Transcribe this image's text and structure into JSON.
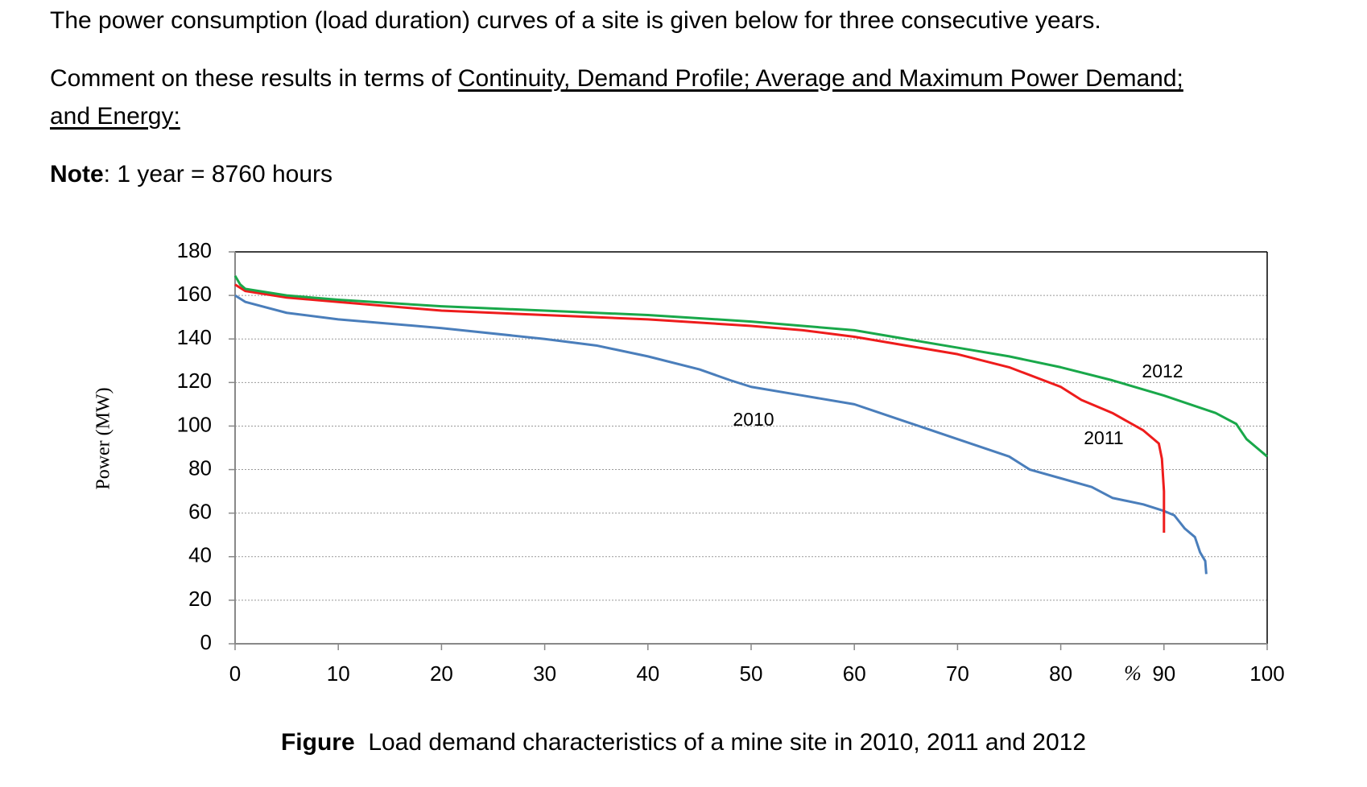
{
  "text": {
    "intro": "The power consumption (load duration) curves of a site is given below for three consecutive years.",
    "comment_prefix": "Comment on these results in terms of ",
    "comment_underlined_1": "Continuity, Demand Profile; Average and Maximum Power Demand;",
    "comment_underlined_2": "and Energy:",
    "note_label": "Note",
    "note_text": ": 1 year = 8760 hours",
    "figure_label": "Figure",
    "figure_caption": "Load demand characteristics of a mine site in 2010, 2011 and 2012"
  },
  "chart_data": {
    "type": "line",
    "y_label": "Power (MW)",
    "x_label": "%",
    "xlim": [
      0,
      100
    ],
    "xticks": [
      0,
      10,
      20,
      30,
      40,
      50,
      60,
      70,
      80,
      90,
      100
    ],
    "ylim": [
      0,
      180
    ],
    "yticks": [
      0,
      20,
      40,
      60,
      80,
      100,
      120,
      140,
      160,
      180
    ],
    "grid": true,
    "series": [
      {
        "name": "2010",
        "color": "#4a7ebb",
        "x": [
          0,
          1,
          5,
          10,
          20,
          30,
          35,
          40,
          45,
          48,
          50,
          55,
          60,
          65,
          70,
          75,
          77,
          80,
          83,
          85,
          88,
          90,
          91,
          92,
          93,
          93.5,
          94,
          94.1
        ],
        "values": [
          160,
          157,
          152,
          149,
          145,
          140,
          137,
          132,
          126,
          121,
          118,
          114,
          110,
          102,
          94,
          86,
          80,
          76,
          72,
          67,
          64,
          61,
          59,
          53,
          49,
          42,
          38,
          32
        ]
      },
      {
        "name": "2011",
        "color": "#ee1c1c",
        "x": [
          0,
          1,
          5,
          10,
          20,
          30,
          40,
          50,
          55,
          60,
          65,
          70,
          75,
          80,
          82,
          85,
          88,
          89.5,
          89.8,
          90,
          90
        ],
        "values": [
          165,
          162,
          159,
          157,
          153,
          151,
          149,
          146,
          144,
          141,
          137,
          133,
          127,
          118,
          112,
          106,
          98,
          92,
          85,
          70,
          51
        ]
      },
      {
        "name": "2012",
        "color": "#19a84a",
        "x": [
          0,
          0.5,
          1,
          5,
          10,
          20,
          30,
          40,
          50,
          55,
          60,
          65,
          70,
          75,
          80,
          85,
          90,
          95,
          97,
          98,
          99,
          100
        ],
        "values": [
          169,
          165,
          163,
          160,
          158,
          155,
          153,
          151,
          148,
          146,
          144,
          140,
          136,
          132,
          127,
          121,
          114,
          106,
          101,
          94,
          90,
          86
        ]
      }
    ]
  }
}
